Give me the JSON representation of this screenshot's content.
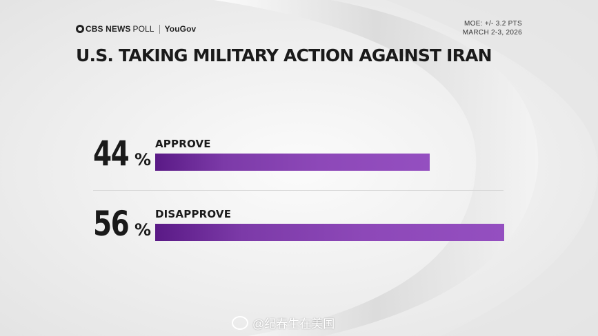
{
  "header": {
    "brand_cbs": "CBS NEWS",
    "brand_poll": "POLL",
    "brand_partner": "YouGov",
    "moe": "MOE: +/- 3.2 PTS",
    "dates": "MARCH 2-3, 2026"
  },
  "title": "U.S. TAKING MILITARY ACTION AGAINST IRAN",
  "chart_data": {
    "type": "bar",
    "orientation": "horizontal",
    "title": "U.S. TAKING MILITARY ACTION AGAINST IRAN",
    "categories": [
      "APPROVE",
      "DISAPPROVE"
    ],
    "values": [
      44,
      56
    ],
    "value_labels": [
      "44",
      "56"
    ],
    "unit": "%",
    "xlim": [
      0,
      56
    ],
    "bar_color": "#8d48b8",
    "grid": false
  },
  "watermark": "@纪春生在美国",
  "colors": {
    "bar_start": "#5a1a86",
    "bar_end": "#944fc0",
    "text": "#1a1a1a"
  }
}
